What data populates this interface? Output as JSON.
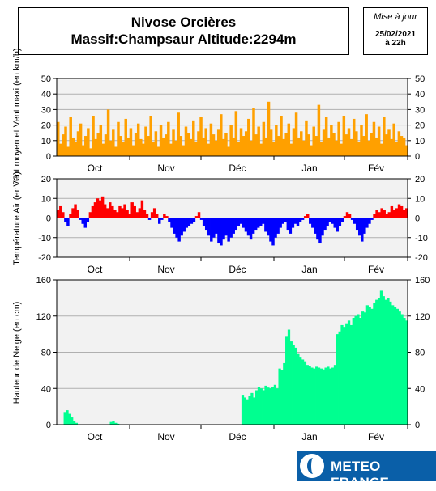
{
  "header": {
    "title_line1": "Nivose Orcières",
    "title_line2": "Massif:Champsaur Altitude:2294m"
  },
  "update": {
    "label": "Mise à jour",
    "date": "25/02/2021",
    "time": "à 22h"
  },
  "logo": {
    "text": "METEO FRANCE"
  },
  "colors": {
    "wind": "#ffa000",
    "temp_pos": "#ff0000",
    "temp_neg": "#0000ff",
    "snow": "#00ff90"
  },
  "chart_data": [
    {
      "type": "area",
      "id": "wind",
      "ylabel": "Vent moyen et Vent maxi (en km/h)",
      "ylim": [
        0,
        50
      ],
      "yticks": [
        0,
        10,
        20,
        30,
        40,
        50
      ],
      "month_labels": [
        "Oct",
        "Nov",
        "Déc",
        "Jan",
        "Fév"
      ],
      "grid": true,
      "x_start": "2020-09-20",
      "x_end": "2021-02-25",
      "series": [
        {
          "values": [
            22,
            8,
            14,
            19,
            6,
            25,
            12,
            9,
            16,
            21,
            7,
            13,
            18,
            5,
            26,
            11,
            15,
            20,
            8,
            14,
            30,
            10,
            17,
            6,
            22,
            13,
            9,
            24,
            12,
            18,
            7,
            15,
            21,
            11,
            8,
            19,
            13,
            26,
            9,
            16,
            6,
            20,
            12,
            14,
            22,
            8,
            17,
            10,
            28,
            13,
            7,
            19,
            15,
            11,
            23,
            9,
            16,
            25,
            12,
            18,
            8,
            21,
            14,
            10,
            17,
            27,
            11,
            15,
            6,
            20,
            12,
            29,
            9,
            18,
            13,
            16,
            24,
            10,
            31,
            14,
            19,
            8,
            22,
            12,
            35,
            17,
            9,
            20,
            13,
            26,
            11,
            15,
            21,
            8,
            18,
            28,
            12,
            16,
            10,
            23,
            14,
            7,
            19,
            13,
            33,
            9,
            17,
            25,
            12,
            20,
            15,
            10,
            22,
            8,
            26,
            14,
            18,
            11,
            24,
            16,
            9,
            20,
            13,
            27,
            10,
            15,
            22,
            12,
            19,
            8,
            25,
            14,
            17,
            11,
            21,
            9,
            16,
            13,
            12,
            7
          ]
        }
      ]
    },
    {
      "type": "area",
      "id": "temperature",
      "ylabel": "Température Air (en °C)",
      "ylim": [
        -20,
        20
      ],
      "yticks": [
        -20,
        -10,
        0,
        10,
        20
      ],
      "month_labels": [
        "Oct",
        "Nov",
        "Déc",
        "Jan",
        "Fév"
      ],
      "grid": true,
      "x_start": "2020-09-20",
      "x_end": "2021-02-25",
      "series": [
        {
          "values": [
            4,
            6,
            3,
            -2,
            -4,
            2,
            5,
            7,
            4,
            -1,
            -3,
            -5,
            -2,
            3,
            6,
            8,
            10,
            9,
            11,
            7,
            5,
            8,
            6,
            4,
            3,
            6,
            5,
            7,
            4,
            2,
            8,
            6,
            3,
            5,
            9,
            4,
            2,
            -1,
            3,
            5,
            2,
            -3,
            -1,
            2,
            1,
            -2,
            -5,
            -8,
            -10,
            -12,
            -9,
            -7,
            -5,
            -4,
            -3,
            -2,
            1,
            3,
            -1,
            -4,
            -6,
            -9,
            -12,
            -10,
            -8,
            -13,
            -14,
            -11,
            -9,
            -12,
            -10,
            -8,
            -6,
            -4,
            -3,
            -5,
            -7,
            -9,
            -11,
            -8,
            -6,
            -5,
            -4,
            -3,
            -7,
            -9,
            -12,
            -14,
            -10,
            -8,
            -5,
            -3,
            -2,
            -6,
            -8,
            -5,
            -3,
            -4,
            -2,
            -1,
            1,
            2,
            -3,
            -5,
            -8,
            -11,
            -13,
            -9,
            -6,
            -4,
            -2,
            -3,
            -5,
            -7,
            -4,
            -2,
            1,
            3,
            2,
            -1,
            -3,
            -6,
            -9,
            -12,
            -8,
            -5,
            -3,
            -1,
            2,
            4,
            3,
            5,
            4,
            2,
            3,
            6,
            4,
            5,
            7,
            6,
            4,
            5
          ]
        }
      ]
    },
    {
      "type": "area",
      "id": "snow",
      "ylabel": "Hauteur de Neige (en cm)",
      "ylim": [
        0,
        160
      ],
      "yticks": [
        0,
        40,
        80,
        120,
        160
      ],
      "month_labels": [
        "Oct",
        "Nov",
        "Déc",
        "Jan",
        "Fév"
      ],
      "grid": true,
      "x_start": "2020-09-20",
      "x_end": "2021-02-25",
      "series": [
        {
          "values": [
            0,
            0,
            0,
            14,
            16,
            12,
            8,
            4,
            2,
            0,
            0,
            0,
            0,
            0,
            0,
            0,
            0,
            0,
            0,
            0,
            0,
            0,
            0,
            3,
            4,
            2,
            1,
            0,
            0,
            0,
            0,
            0,
            0,
            0,
            0,
            0,
            0,
            0,
            0,
            0,
            0,
            0,
            0,
            0,
            0,
            0,
            0,
            0,
            0,
            0,
            0,
            0,
            0,
            0,
            0,
            0,
            0,
            0,
            0,
            0,
            0,
            0,
            0,
            0,
            0,
            0,
            0,
            0,
            0,
            0,
            0,
            0,
            0,
            0,
            0,
            0,
            0,
            0,
            0,
            0,
            33,
            30,
            28,
            32,
            35,
            30,
            38,
            42,
            40,
            38,
            43,
            41,
            40,
            42,
            44,
            40,
            62,
            60,
            68,
            98,
            105,
            92,
            88,
            85,
            78,
            75,
            72,
            70,
            66,
            65,
            63,
            62,
            64,
            63,
            62,
            61,
            63,
            64,
            62,
            63,
            66,
            100,
            103,
            110,
            108,
            112,
            115,
            110,
            118,
            120,
            122,
            118,
            125,
            124,
            132,
            130,
            128,
            135,
            138,
            140,
            148,
            142,
            138,
            140,
            136,
            132,
            130,
            128,
            125,
            122,
            118,
            115
          ]
        }
      ]
    }
  ]
}
